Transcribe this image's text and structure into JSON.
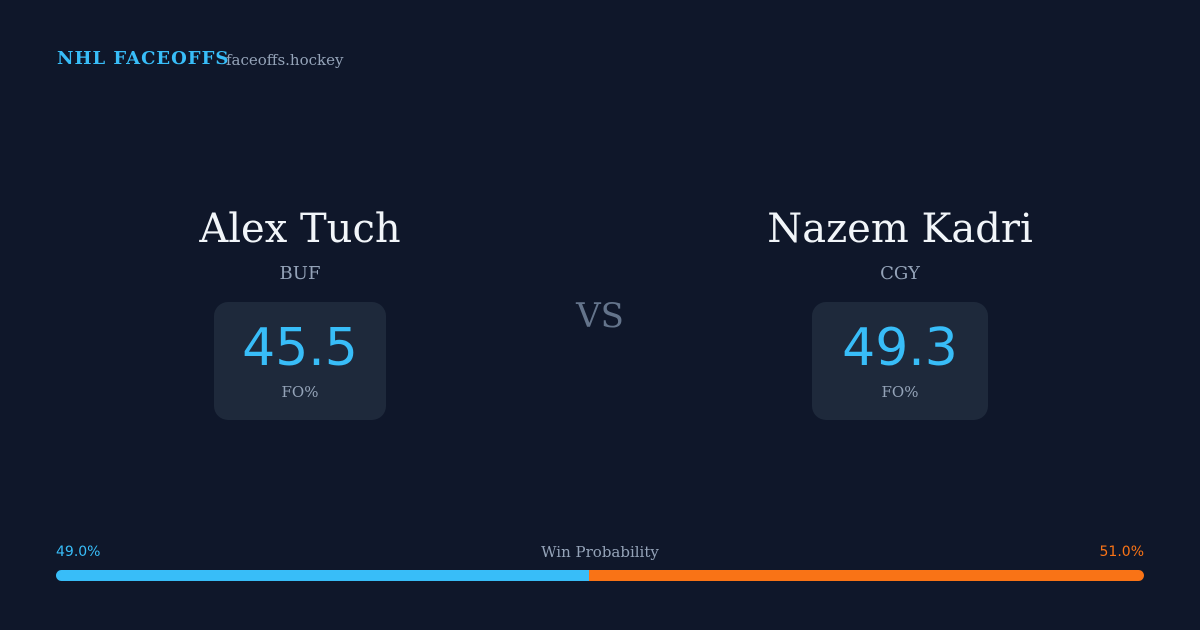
{
  "header": {
    "title": "NHL FACEOFFS",
    "site": "faceoffs.hockey"
  },
  "players": [
    {
      "name": "Alex Tuch",
      "team": "BUF",
      "stat": 45.5,
      "stat_label": "FO%"
    },
    {
      "name": "Nazem Kadri",
      "team": "CGY",
      "stat": 49.3,
      "stat_label": "FO%"
    }
  ],
  "versus": "VS",
  "win_probability": {
    "label": "Win Probability",
    "left": {
      "value": 49.0,
      "label": "49.0%",
      "color": "#38bdf8"
    },
    "right": {
      "value": 51.0,
      "label": "51.0%",
      "color": "#f97316"
    }
  }
}
